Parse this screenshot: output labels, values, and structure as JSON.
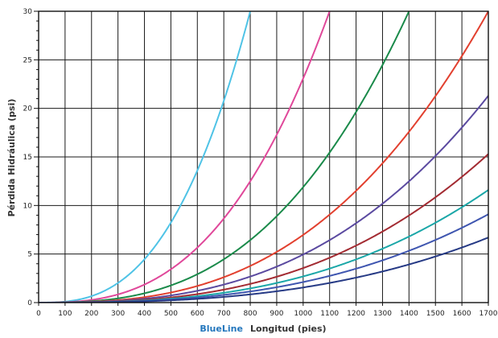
{
  "chart_data": {
    "type": "line",
    "x_axis": {
      "brand": "BlueLine",
      "label": "Longitud (pies)",
      "min": 0,
      "max": 1700,
      "ticks": [
        0,
        100,
        200,
        300,
        400,
        500,
        600,
        700,
        800,
        900,
        1000,
        1100,
        1200,
        1300,
        1400,
        1500,
        1600,
        1700
      ]
    },
    "y_axis": {
      "label": "Pérdida Hidráulica (psi)",
      "min": 0,
      "max": 30,
      "major_ticks": [
        0,
        5,
        10,
        15,
        20,
        25,
        30
      ],
      "minor_step": 1
    },
    "grid": true,
    "exponent": 2.75,
    "series": [
      {
        "color": "#4fc3e6",
        "reference_length": 800,
        "reference_psi": 30
      },
      {
        "color": "#e0489a",
        "reference_length": 1100,
        "reference_psi": 30
      },
      {
        "color": "#1a8a4a",
        "reference_length": 1400,
        "reference_psi": 30
      },
      {
        "color": "#e2402f",
        "reference_length": 1700,
        "reference_psi": 30
      },
      {
        "color": "#5b4aa0",
        "reference_length": 1700,
        "reference_psi": 21.3
      },
      {
        "color": "#a32b32",
        "reference_length": 1700,
        "reference_psi": 15.3
      },
      {
        "color": "#1ba7a8",
        "reference_length": 1700,
        "reference_psi": 11.6
      },
      {
        "color": "#3f56b0",
        "reference_length": 1700,
        "reference_psi": 9.1
      },
      {
        "color": "#263a85",
        "reference_length": 1700,
        "reference_psi": 6.7
      }
    ]
  }
}
